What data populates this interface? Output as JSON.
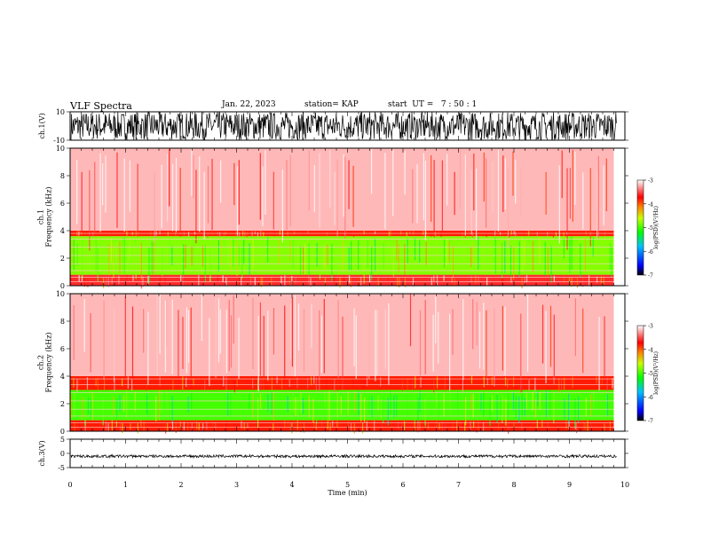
{
  "header": {
    "title": "VLF Spectra",
    "date": "Jan. 22, 2023",
    "station": "station= KAP",
    "start": "start  UT =   7 : 50 : 1"
  },
  "chart_data": [
    {
      "type": "line",
      "ylabel": "ch.1(V)",
      "ylim": [
        -10,
        10
      ],
      "yticks": [
        "10",
        "-10"
      ],
      "xlim": [
        0,
        10
      ],
      "grid": false,
      "signal_range": [
        -10,
        10
      ]
    },
    {
      "type": "heatmap",
      "ylabel": "ch.1\nFrequency (kHz)",
      "ylim": [
        0,
        10
      ],
      "yticks": [
        "0",
        "2",
        "4",
        "6",
        "8",
        "10"
      ],
      "xlim": [
        0,
        10
      ],
      "colorbar": {
        "label": "log(PSD)(V²/Hz)",
        "ticks": [
          "-3",
          "-4",
          "-5",
          "-6",
          "-7"
        ],
        "range": [
          -7,
          -3
        ]
      },
      "bands": [
        {
          "f_low": 0.0,
          "f_high": 0.8,
          "level": -3.6
        },
        {
          "f_low": 0.8,
          "f_high": 3.6,
          "level": -4.8
        },
        {
          "f_low": 3.6,
          "f_high": 4.0,
          "level": -3.8
        },
        {
          "f_low": 4.0,
          "f_high": 10.0,
          "level": -3.2
        }
      ],
      "data_end_min": 9.8
    },
    {
      "type": "heatmap",
      "ylabel": "ch.2\nFrequency (kHz)",
      "ylim": [
        0,
        10
      ],
      "yticks": [
        "0",
        "2",
        "4",
        "6",
        "8",
        "10"
      ],
      "xlim": [
        0,
        10
      ],
      "colorbar": {
        "label": "log(PSD)(V²/Hz)",
        "ticks": [
          "-3",
          "-4",
          "-5",
          "-6",
          "-7"
        ],
        "range": [
          -7,
          -3
        ]
      },
      "bands": [
        {
          "f_low": 0.0,
          "f_high": 0.8,
          "level": -3.8
        },
        {
          "f_low": 0.8,
          "f_high": 3.0,
          "level": -5.0
        },
        {
          "f_low": 3.0,
          "f_high": 4.0,
          "level": -3.8
        },
        {
          "f_low": 4.0,
          "f_high": 10.0,
          "level": -3.2
        }
      ],
      "data_end_min": 9.8
    },
    {
      "type": "line",
      "ylabel": "ch.3(V)",
      "ylim": [
        -5,
        5
      ],
      "yticks": [
        "5",
        "0",
        "-5"
      ],
      "xlim": [
        0,
        10
      ],
      "xlabel": "Time (min)",
      "xticks": [
        "0",
        "1",
        "2",
        "3",
        "4",
        "5",
        "6",
        "7",
        "8",
        "9",
        "10"
      ],
      "grid": false,
      "signal_range": [
        -1.5,
        -0.5
      ]
    }
  ]
}
